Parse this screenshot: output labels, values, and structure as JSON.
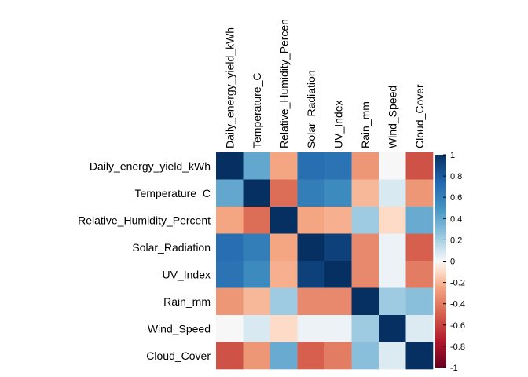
{
  "chart_data": {
    "type": "heatmap",
    "title": "",
    "variables": [
      "Daily_energy_yield_kWh",
      "Temperature_C",
      "Relative_Humidity_Percent",
      "Solar_Radiation",
      "UV_Index",
      "Rain_mm",
      "Wind_Speed",
      "Cloud_Cover"
    ],
    "column_labels": [
      "Daily_energy_yield_kWh",
      "Temperature_C",
      "Relative_Humidity_Percen",
      "Solar_Radiation",
      "UV_Index",
      "Rain_mm",
      "Wind_Speed",
      "Cloud_Cover"
    ],
    "matrix": [
      [
        1.0,
        0.4,
        -0.25,
        0.7,
        0.68,
        -0.3,
        0.0,
        -0.55
      ],
      [
        0.4,
        1.0,
        -0.45,
        0.62,
        0.55,
        -0.2,
        0.08,
        -0.3
      ],
      [
        -0.25,
        -0.45,
        1.0,
        -0.25,
        -0.22,
        0.22,
        -0.1,
        0.38
      ],
      [
        0.7,
        0.62,
        -0.25,
        1.0,
        0.92,
        -0.35,
        0.03,
        -0.5
      ],
      [
        0.68,
        0.55,
        -0.22,
        0.92,
        1.0,
        -0.35,
        0.03,
        -0.4
      ],
      [
        -0.3,
        -0.2,
        0.22,
        -0.35,
        -0.35,
        1.0,
        0.22,
        0.28
      ],
      [
        0.0,
        0.08,
        -0.1,
        0.03,
        0.03,
        0.22,
        1.0,
        0.07
      ],
      [
        -0.55,
        -0.3,
        0.38,
        -0.5,
        -0.4,
        0.28,
        0.07,
        1.0
      ]
    ],
    "colorbar": {
      "range": [
        -1,
        1
      ],
      "ticks": [
        "1",
        "0.8",
        "0.6",
        "0.4",
        "0.2",
        "0",
        "-0.2",
        "-0.4",
        "-0.6",
        "-0.8",
        "-1"
      ],
      "low_color": "#67001f",
      "mid_color": "#f7f7f7",
      "high_color": "#053061"
    },
    "grid": false,
    "legend": "right"
  }
}
